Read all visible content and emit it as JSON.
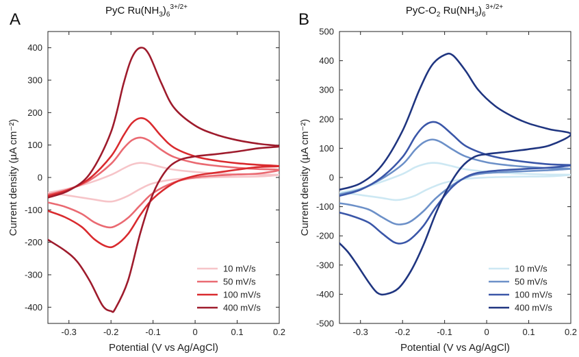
{
  "chart_data": [
    {
      "type": "line",
      "panel_label": "A",
      "title": {
        "main": "PyC Ru(NH",
        "sub1": "3",
        "paren": ")",
        "sub2": "6",
        "sup": "3+/2+"
      },
      "xlabel": "Potential (V vs Ag/AgCl)",
      "ylabel": "Current density (µA cm⁻²)",
      "xlim": [
        -0.35,
        0.2
      ],
      "ylim": [
        -450,
        450
      ],
      "xticks": [
        -0.3,
        -0.2,
        -0.1,
        0,
        0.1,
        0.2
      ],
      "xtick_labels": [
        "-0.3",
        "-0.2",
        "-0.1",
        "0",
        "0.1",
        "0.2"
      ],
      "yticks": [
        -400,
        -300,
        -200,
        -100,
        0,
        100,
        200,
        300,
        400
      ],
      "ytick_labels": [
        "-400",
        "-300",
        "-200",
        "-100",
        "0",
        "100",
        "200",
        "300",
        "400"
      ],
      "legend_position": "bottom-right",
      "series": [
        {
          "name": "10 mV/s",
          "color": "#f6c4c8",
          "anodic": [
            [
              -0.35,
              -47
            ],
            [
              -0.3,
              -34
            ],
            [
              -0.25,
              -16
            ],
            [
              -0.2,
              8
            ],
            [
              -0.17,
              28
            ],
            [
              -0.15,
              40
            ],
            [
              -0.13,
              45
            ],
            [
              -0.11,
              42
            ],
            [
              -0.08,
              32
            ],
            [
              -0.05,
              24
            ],
            [
              0,
              17
            ],
            [
              0.05,
              13
            ],
            [
              0.1,
              11
            ],
            [
              0.15,
              9
            ],
            [
              0.2,
              8
            ]
          ],
          "cathodic": [
            [
              0.2,
              4
            ],
            [
              0.15,
              3
            ],
            [
              0.1,
              2
            ],
            [
              0.05,
              1
            ],
            [
              0,
              -2
            ],
            [
              -0.05,
              -6
            ],
            [
              -0.1,
              -18
            ],
            [
              -0.13,
              -35
            ],
            [
              -0.16,
              -57
            ],
            [
              -0.19,
              -72
            ],
            [
              -0.21,
              -74
            ],
            [
              -0.24,
              -68
            ],
            [
              -0.28,
              -60
            ],
            [
              -0.32,
              -52
            ],
            [
              -0.35,
              -47
            ]
          ]
        },
        {
          "name": "50 mV/s",
          "color": "#ea6a72",
          "anodic": [
            [
              -0.35,
              -53
            ],
            [
              -0.3,
              -36
            ],
            [
              -0.25,
              -8
            ],
            [
              -0.2,
              42
            ],
            [
              -0.17,
              90
            ],
            [
              -0.15,
              115
            ],
            [
              -0.13,
              123
            ],
            [
              -0.11,
              114
            ],
            [
              -0.08,
              85
            ],
            [
              -0.05,
              63
            ],
            [
              0,
              45
            ],
            [
              0.05,
              36
            ],
            [
              0.1,
              30
            ],
            [
              0.15,
              26
            ],
            [
              0.2,
              23
            ]
          ],
          "cathodic": [
            [
              0.2,
              15
            ],
            [
              0.15,
              12
            ],
            [
              0.1,
              9
            ],
            [
              0.05,
              6
            ],
            [
              0,
              0
            ],
            [
              -0.05,
              -15
            ],
            [
              -0.1,
              -48
            ],
            [
              -0.13,
              -85
            ],
            [
              -0.16,
              -125
            ],
            [
              -0.19,
              -150
            ],
            [
              -0.21,
              -153
            ],
            [
              -0.24,
              -138
            ],
            [
              -0.27,
              -112
            ],
            [
              -0.31,
              -90
            ],
            [
              -0.35,
              -77
            ]
          ]
        },
        {
          "name": "100 mV/s",
          "color": "#d92a2e",
          "anodic": [
            [
              -0.35,
              -57
            ],
            [
              -0.3,
              -38
            ],
            [
              -0.25,
              -2
            ],
            [
              -0.2,
              65
            ],
            [
              -0.17,
              130
            ],
            [
              -0.15,
              168
            ],
            [
              -0.13,
              183
            ],
            [
              -0.11,
              172
            ],
            [
              -0.08,
              127
            ],
            [
              -0.05,
              92
            ],
            [
              0,
              65
            ],
            [
              0.05,
              52
            ],
            [
              0.1,
              44
            ],
            [
              0.15,
              39
            ],
            [
              0.2,
              35
            ]
          ],
          "cathodic": [
            [
              0.2,
              38
            ],
            [
              0.15,
              32
            ],
            [
              0.1,
              24
            ],
            [
              0.05,
              15
            ],
            [
              0,
              5
            ],
            [
              -0.05,
              -17
            ],
            [
              -0.1,
              -65
            ],
            [
              -0.13,
              -115
            ],
            [
              -0.16,
              -175
            ],
            [
              -0.19,
              -210
            ],
            [
              -0.21,
              -213
            ],
            [
              -0.24,
              -190
            ],
            [
              -0.27,
              -152
            ],
            [
              -0.31,
              -122
            ],
            [
              -0.35,
              -103
            ]
          ]
        },
        {
          "name": "400 mV/s",
          "color": "#9e1b2c",
          "anodic": [
            [
              -0.35,
              -62
            ],
            [
              -0.3,
              -40
            ],
            [
              -0.25,
              12
            ],
            [
              -0.2,
              140
            ],
            [
              -0.17,
              290
            ],
            [
              -0.15,
              370
            ],
            [
              -0.13,
              400
            ],
            [
              -0.11,
              380
            ],
            [
              -0.08,
              290
            ],
            [
              -0.05,
              215
            ],
            [
              0,
              160
            ],
            [
              0.05,
              132
            ],
            [
              0.1,
              115
            ],
            [
              0.15,
              104
            ],
            [
              0.2,
              96
            ]
          ],
          "cathodic": [
            [
              0.2,
              100
            ],
            [
              0.15,
              90
            ],
            [
              0.1,
              80
            ],
            [
              0.05,
              72
            ],
            [
              0,
              65
            ],
            [
              -0.04,
              52
            ],
            [
              -0.07,
              20
            ],
            [
              -0.1,
              -50
            ],
            [
              -0.13,
              -170
            ],
            [
              -0.16,
              -320
            ],
            [
              -0.19,
              -405
            ],
            [
              -0.2,
              -412
            ],
            [
              -0.22,
              -395
            ],
            [
              -0.25,
              -320
            ],
            [
              -0.28,
              -260
            ],
            [
              -0.31,
              -225
            ],
            [
              -0.35,
              -192
            ]
          ]
        }
      ]
    },
    {
      "type": "line",
      "panel_label": "B",
      "title": {
        "main": "PyC-O",
        "sub0": "2",
        "main2": " Ru(NH",
        "sub1": "3",
        "paren": ")",
        "sub2": "6",
        "sup": "3+/2+"
      },
      "xlabel": "Potential (V vs Ag/AgCl)",
      "ylabel": "Current density (µA cm⁻²)",
      "xlim": [
        -0.35,
        0.2
      ],
      "ylim": [
        -500,
        500
      ],
      "xticks": [
        -0.3,
        -0.2,
        -0.1,
        0,
        0.1,
        0.2
      ],
      "xtick_labels": [
        "-0.3",
        "-0.2",
        "-0.1",
        "0",
        "0.1",
        "0.2"
      ],
      "yticks": [
        -500,
        -400,
        -300,
        -200,
        -100,
        0,
        100,
        200,
        300,
        400,
        500
      ],
      "ytick_labels": [
        "-500",
        "-400",
        "-300",
        "-200",
        "-100",
        "0",
        "100",
        "200",
        "300",
        "400",
        "500"
      ],
      "legend_position": "bottom-right",
      "series": [
        {
          "name": "10 mV/s",
          "color": "#cde8f3",
          "anodic": [
            [
              -0.35,
              -52
            ],
            [
              -0.3,
              -38
            ],
            [
              -0.25,
              -15
            ],
            [
              -0.2,
              12
            ],
            [
              -0.17,
              35
            ],
            [
              -0.15,
              45
            ],
            [
              -0.13,
              50
            ],
            [
              -0.11,
              48
            ],
            [
              -0.08,
              38
            ],
            [
              -0.05,
              28
            ],
            [
              0,
              20
            ],
            [
              0.05,
              15
            ],
            [
              0.1,
              12
            ],
            [
              0.15,
              10
            ],
            [
              0.2,
              9
            ]
          ],
          "cathodic": [
            [
              0.2,
              5
            ],
            [
              0.15,
              4
            ],
            [
              0.1,
              3
            ],
            [
              0.05,
              2
            ],
            [
              0,
              0
            ],
            [
              -0.05,
              -5
            ],
            [
              -0.1,
              -18
            ],
            [
              -0.14,
              -40
            ],
            [
              -0.17,
              -62
            ],
            [
              -0.2,
              -75
            ],
            [
              -0.22,
              -77
            ],
            [
              -0.25,
              -70
            ],
            [
              -0.29,
              -62
            ],
            [
              -0.32,
              -56
            ],
            [
              -0.35,
              -52
            ]
          ]
        },
        {
          "name": "50 mV/s",
          "color": "#6c90c8",
          "anodic": [
            [
              -0.35,
              -58
            ],
            [
              -0.3,
              -40
            ],
            [
              -0.25,
              -5
            ],
            [
              -0.2,
              45
            ],
            [
              -0.17,
              95
            ],
            [
              -0.15,
              120
            ],
            [
              -0.13,
              130
            ],
            [
              -0.11,
              122
            ],
            [
              -0.08,
              95
            ],
            [
              -0.05,
              72
            ],
            [
              0,
              52
            ],
            [
              0.05,
              42
            ],
            [
              0.1,
              36
            ],
            [
              0.15,
              32
            ],
            [
              0.2,
              30
            ]
          ],
          "cathodic": [
            [
              0.2,
              28
            ],
            [
              0.15,
              25
            ],
            [
              0.1,
              22
            ],
            [
              0.05,
              19
            ],
            [
              0,
              15
            ],
            [
              -0.04,
              5
            ],
            [
              -0.08,
              -25
            ],
            [
              -0.12,
              -70
            ],
            [
              -0.15,
              -115
            ],
            [
              -0.18,
              -150
            ],
            [
              -0.2,
              -160
            ],
            [
              -0.22,
              -158
            ],
            [
              -0.25,
              -135
            ],
            [
              -0.28,
              -110
            ],
            [
              -0.32,
              -95
            ],
            [
              -0.35,
              -88
            ]
          ]
        },
        {
          "name": "100 mV/s",
          "color": "#3a56a8",
          "anodic": [
            [
              -0.35,
              -63
            ],
            [
              -0.3,
              -42
            ],
            [
              -0.25,
              0
            ],
            [
              -0.2,
              70
            ],
            [
              -0.17,
              140
            ],
            [
              -0.15,
              175
            ],
            [
              -0.13,
              190
            ],
            [
              -0.11,
              182
            ],
            [
              -0.08,
              145
            ],
            [
              -0.05,
              108
            ],
            [
              0,
              78
            ],
            [
              0.05,
              62
            ],
            [
              0.1,
              52
            ],
            [
              0.15,
              45
            ],
            [
              0.2,
              42
            ]
          ],
          "cathodic": [
            [
              0.2,
              38
            ],
            [
              0.15,
              34
            ],
            [
              0.1,
              30
            ],
            [
              0.05,
              26
            ],
            [
              0,
              20
            ],
            [
              -0.04,
              8
            ],
            [
              -0.08,
              -30
            ],
            [
              -0.12,
              -100
            ],
            [
              -0.15,
              -165
            ],
            [
              -0.18,
              -210
            ],
            [
              -0.2,
              -225
            ],
            [
              -0.22,
              -222
            ],
            [
              -0.25,
              -190
            ],
            [
              -0.28,
              -155
            ],
            [
              -0.32,
              -132
            ],
            [
              -0.35,
              -120
            ]
          ]
        },
        {
          "name": "400 mV/s",
          "color": "#1f3580",
          "anodic": [
            [
              -0.35,
              -42
            ],
            [
              -0.3,
              -20
            ],
            [
              -0.25,
              40
            ],
            [
              -0.2,
              160
            ],
            [
              -0.16,
              300
            ],
            [
              -0.13,
              385
            ],
            [
              -0.1,
              420
            ],
            [
              -0.08,
              418
            ],
            [
              -0.05,
              365
            ],
            [
              -0.02,
              300
            ],
            [
              0.02,
              245
            ],
            [
              0.06,
              210
            ],
            [
              0.1,
              185
            ],
            [
              0.15,
              165
            ],
            [
              0.2,
              148
            ]
          ],
          "cathodic": [
            [
              0.2,
              130
            ],
            [
              0.15,
              110
            ],
            [
              0.1,
              97
            ],
            [
              0.05,
              88
            ],
            [
              0,
              80
            ],
            [
              -0.03,
              70
            ],
            [
              -0.06,
              35
            ],
            [
              -0.09,
              -30
            ],
            [
              -0.12,
              -120
            ],
            [
              -0.15,
              -230
            ],
            [
              -0.18,
              -320
            ],
            [
              -0.21,
              -380
            ],
            [
              -0.24,
              -400
            ],
            [
              -0.26,
              -395
            ],
            [
              -0.28,
              -360
            ],
            [
              -0.31,
              -295
            ],
            [
              -0.33,
              -255
            ],
            [
              -0.35,
              -225
            ]
          ]
        }
      ]
    }
  ]
}
